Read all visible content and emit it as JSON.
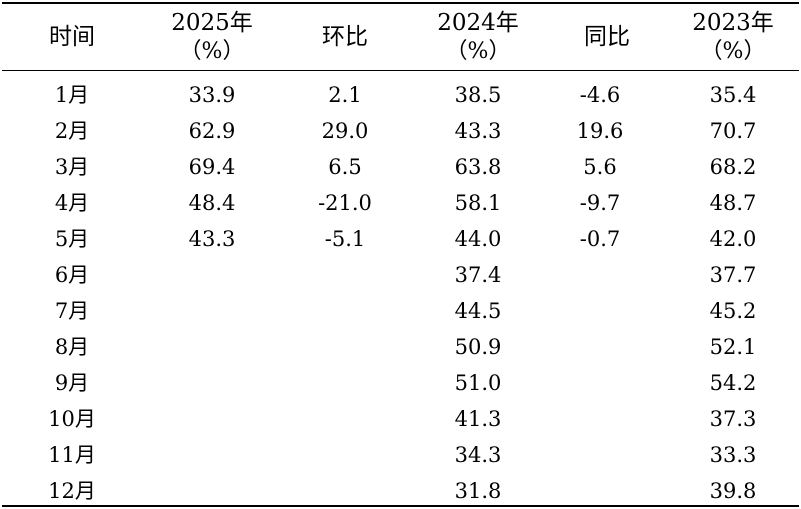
{
  "table": {
    "headers": [
      {
        "line1": "时间",
        "line2": ""
      },
      {
        "line1": "2025年",
        "line2": "（%）"
      },
      {
        "line1": "环比",
        "line2": ""
      },
      {
        "line1": "2024年",
        "line2": "（%）"
      },
      {
        "line1": "同比",
        "line2": ""
      },
      {
        "line1": "2023年",
        "line2": "（%）"
      }
    ],
    "rows": [
      {
        "month": "1月",
        "y2025": "33.9",
        "mom": "2.1",
        "y2024": "38.5",
        "yoy": "-4.6",
        "y2023": "35.4"
      },
      {
        "month": "2月",
        "y2025": "62.9",
        "mom": "29.0",
        "y2024": "43.3",
        "yoy": "19.6",
        "y2023": "70.7"
      },
      {
        "month": "3月",
        "y2025": "69.4",
        "mom": "6.5",
        "y2024": "63.8",
        "yoy": "5.6",
        "y2023": "68.2"
      },
      {
        "month": "4月",
        "y2025": "48.4",
        "mom": "-21.0",
        "y2024": "58.1",
        "yoy": "-9.7",
        "y2023": "48.7"
      },
      {
        "month": "5月",
        "y2025": "43.3",
        "mom": "-5.1",
        "y2024": "44.0",
        "yoy": "-0.7",
        "y2023": "42.0"
      },
      {
        "month": "6月",
        "y2025": "",
        "mom": "",
        "y2024": "37.4",
        "yoy": "",
        "y2023": "37.7"
      },
      {
        "month": "7月",
        "y2025": "",
        "mom": "",
        "y2024": "44.5",
        "yoy": "",
        "y2023": "45.2"
      },
      {
        "month": "8月",
        "y2025": "",
        "mom": "",
        "y2024": "50.9",
        "yoy": "",
        "y2023": "52.1"
      },
      {
        "month": "9月",
        "y2025": "",
        "mom": "",
        "y2024": "51.0",
        "yoy": "",
        "y2023": "54.2"
      },
      {
        "month": "10月",
        "y2025": "",
        "mom": "",
        "y2024": "41.3",
        "yoy": "",
        "y2023": "37.3"
      },
      {
        "month": "11月",
        "y2025": "",
        "mom": "",
        "y2024": "34.3",
        "yoy": "",
        "y2023": "33.3"
      },
      {
        "month": "12月",
        "y2025": "",
        "mom": "",
        "y2024": "31.8",
        "yoy": "",
        "y2023": "39.8"
      }
    ]
  }
}
